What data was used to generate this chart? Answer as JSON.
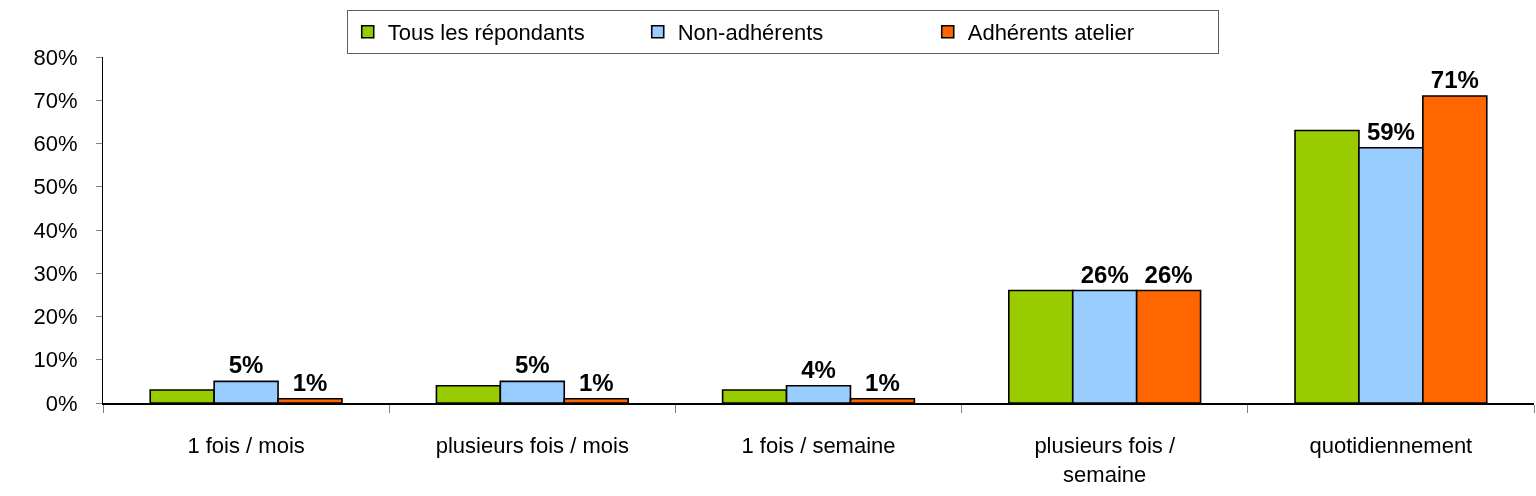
{
  "chart_data": {
    "type": "bar",
    "categories": [
      "1 fois / mois",
      "plusieurs fois / mois",
      "1 fois / semaine",
      "plusieurs fois / semaine",
      "quotidiennement"
    ],
    "series": [
      {
        "name": "Tous les répondants",
        "color": "#99cc00",
        "values": [
          3,
          4,
          3,
          26,
          63
        ]
      },
      {
        "name": "Non-adhérents",
        "color": "#99ccff",
        "values": [
          5,
          5,
          4,
          26,
          59
        ],
        "value_labels": [
          "5%",
          "5%",
          "4%",
          "26%",
          "59%"
        ]
      },
      {
        "name": "Adhérents atelier",
        "color": "#ff6600",
        "values": [
          1,
          1,
          1,
          26,
          71
        ],
        "value_labels": [
          "1%",
          "1%",
          "1%",
          "26%",
          "71%"
        ]
      }
    ],
    "ylim": [
      0,
      80
    ],
    "yticks": [
      {
        "value": 0,
        "label": "0%"
      },
      {
        "value": 10,
        "label": "10%"
      },
      {
        "value": 20,
        "label": "20%"
      },
      {
        "value": 30,
        "label": "30%"
      },
      {
        "value": 40,
        "label": "40%"
      },
      {
        "value": 50,
        "label": "50%"
      },
      {
        "value": 60,
        "label": "60%"
      },
      {
        "value": 70,
        "label": "70%"
      },
      {
        "value": 80,
        "label": "80%"
      }
    ],
    "grid": false,
    "legend": "top"
  }
}
